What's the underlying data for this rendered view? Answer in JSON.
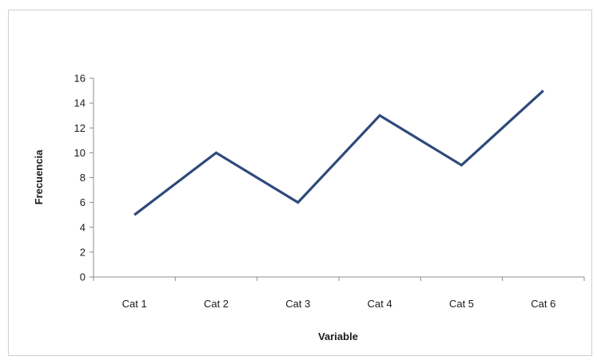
{
  "chart_data": {
    "type": "line",
    "title": "",
    "xlabel": "Variable",
    "ylabel": "Frecuencia",
    "categories": [
      "Cat 1",
      "Cat 2",
      "Cat 3",
      "Cat 4",
      "Cat 5",
      "Cat 6"
    ],
    "series": [
      {
        "values": [
          5,
          10,
          6,
          13,
          9,
          15
        ],
        "color": "#2e4a7a"
      }
    ],
    "ylim": [
      0,
      16
    ],
    "yticks": [
      0,
      2,
      4,
      6,
      8,
      10,
      12,
      14,
      16
    ],
    "grid": false,
    "legend": "none"
  }
}
